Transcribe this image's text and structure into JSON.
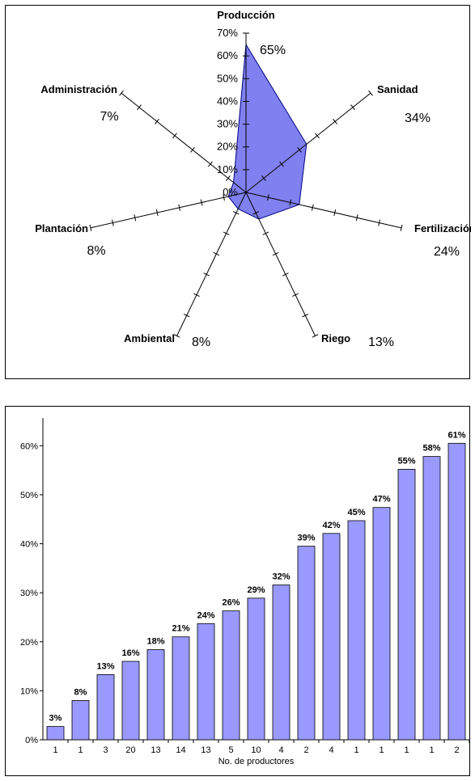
{
  "chart_data": [
    {
      "type": "radar",
      "categories": [
        "Producción",
        "Sanidad",
        "Fertilización",
        "Riego",
        "Ambiental",
        "Plantación",
        "Administración"
      ],
      "values": [
        65,
        34,
        24,
        13,
        8,
        8,
        7
      ],
      "value_labels": [
        "65%",
        "34%",
        "24%",
        "13%",
        "8%",
        "8%",
        "7%"
      ],
      "radial_ticks": [
        "0%",
        "10%",
        "20%",
        "30%",
        "40%",
        "50%",
        "60%",
        "70%"
      ],
      "rlim": [
        0,
        70
      ],
      "fill_color": "#8080f0"
    },
    {
      "type": "bar",
      "categories": [
        "1",
        "1",
        "3",
        "20",
        "13",
        "14",
        "13",
        "5",
        "10",
        "4",
        "2",
        "4",
        "1",
        "1",
        "1",
        "1",
        "2"
      ],
      "values": [
        3,
        8,
        13,
        16,
        18,
        21,
        24,
        26,
        29,
        32,
        39,
        42,
        45,
        47,
        55,
        58,
        61
      ],
      "bar_values": [
        2.7,
        8,
        13.3,
        16,
        18.4,
        21,
        23.7,
        26.3,
        28.9,
        31.6,
        39.5,
        42.1,
        44.7,
        47.4,
        55.2,
        57.8,
        60.5
      ],
      "value_labels": [
        "3%",
        "8%",
        "13%",
        "16%",
        "18%",
        "21%",
        "24%",
        "26%",
        "29%",
        "32%",
        "39%",
        "42%",
        "45%",
        "47%",
        "55%",
        "58%",
        "61%"
      ],
      "xlabel": "No. de productores",
      "ylabel": "",
      "yticks": [
        "0%",
        "10%",
        "20%",
        "30%",
        "40%",
        "50%",
        "60%"
      ],
      "ylim": [
        0,
        65
      ],
      "bar_color": "#9999ff",
      "grid": false
    }
  ]
}
